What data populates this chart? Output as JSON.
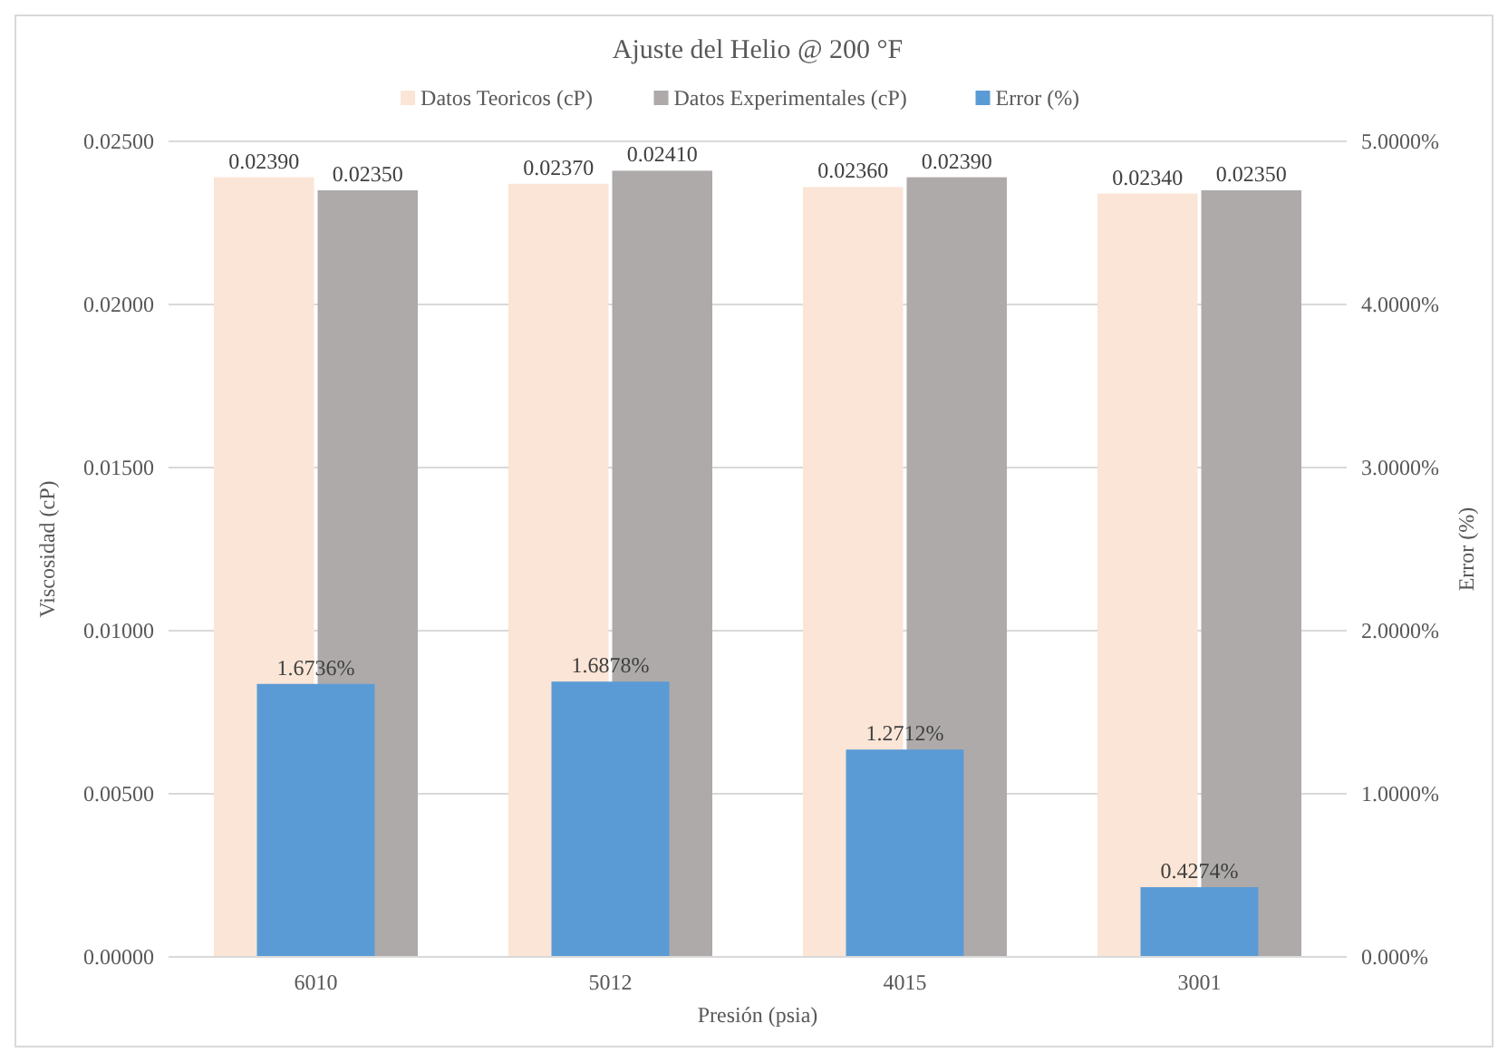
{
  "chart_data": {
    "type": "bar",
    "title": "Ajuste del Helio @ 200 °F",
    "xlabel": "Presión (psia)",
    "ylabel": "Viscosidad (cP)",
    "y2label": "Error (%)",
    "categories": [
      "6010",
      "5012",
      "4015",
      "3001"
    ],
    "series": [
      {
        "name": "Datos Teoricos (cP)",
        "color": "#fbe5d6",
        "values": [
          0.0239,
          0.0237,
          0.0236,
          0.0234
        ],
        "value_labels": [
          "0.02390",
          "0.02370",
          "0.02360",
          "0.02340"
        ]
      },
      {
        "name": "Datos Experimentales (cP)",
        "color": "#aeaaaa",
        "values": [
          0.0235,
          0.0241,
          0.0239,
          0.0235
        ],
        "value_labels": [
          "0.02350",
          "0.02410",
          "0.02390",
          "0.02350"
        ]
      },
      {
        "name": "Error (%)",
        "color": "#5b9bd5",
        "axis": "y2",
        "values": [
          1.6736,
          1.6878,
          1.2712,
          0.4274
        ],
        "value_labels": [
          "1.6736%",
          "1.6878%",
          "1.2712%",
          "0.4274%"
        ]
      }
    ],
    "ylim": [
      0,
      0.025
    ],
    "yticks": [
      {
        "value": 0,
        "label": "0.00000"
      },
      {
        "value": 0.005,
        "label": "0.00500"
      },
      {
        "value": 0.01,
        "label": "0.01000"
      },
      {
        "value": 0.015,
        "label": "0.01500"
      },
      {
        "value": 0.02,
        "label": "0.02000"
      },
      {
        "value": 0.025,
        "label": "0.02500"
      }
    ],
    "y2lim": [
      0,
      5
    ],
    "y2ticks": [
      {
        "value": 0,
        "label": "0.000%"
      },
      {
        "value": 1,
        "label": "1.0000%"
      },
      {
        "value": 2,
        "label": "2.0000%"
      },
      {
        "value": 3,
        "label": "3.0000%"
      },
      {
        "value": 4,
        "label": "4.0000%"
      },
      {
        "value": 5,
        "label": "5.0000%"
      }
    ],
    "grid": "y",
    "legend": "top"
  }
}
